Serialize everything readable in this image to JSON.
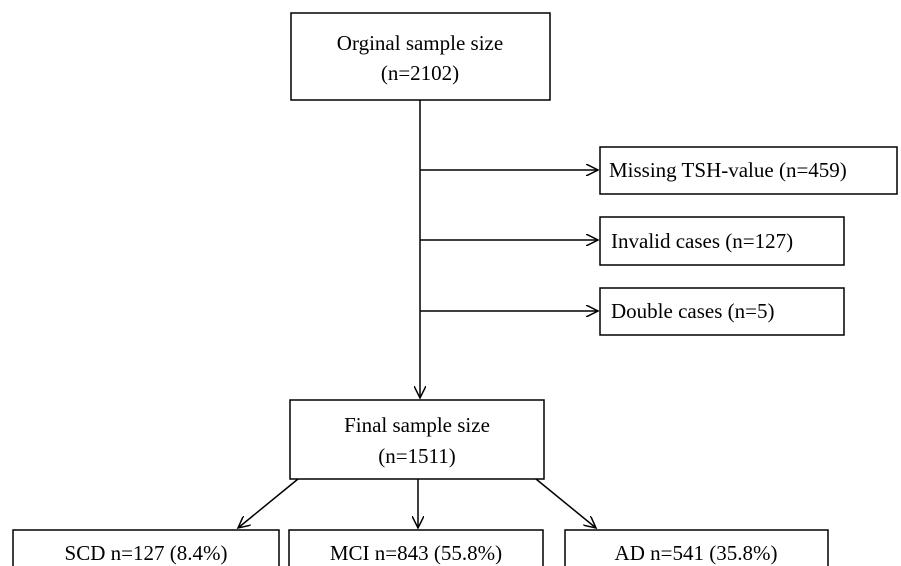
{
  "boxes": {
    "original": {
      "line1": "Orginal sample size",
      "line2": "(n=2102)"
    },
    "missing": {
      "text": "Missing TSH-value (n=459)"
    },
    "invalid": {
      "text": "Invalid cases (n=127)"
    },
    "double": {
      "text": "Double cases (n=5)"
    },
    "final": {
      "line1": "Final sample size",
      "line2": "(n=1511)"
    },
    "scd": {
      "text": "SCD n=127 (8.4%)"
    },
    "mci": {
      "text": "MCI n=843 (55.8%)"
    },
    "ad": {
      "text": "AD n=541 (35.8%)"
    }
  },
  "colors": {
    "stroke": "#000000",
    "background": "#ffffff"
  }
}
